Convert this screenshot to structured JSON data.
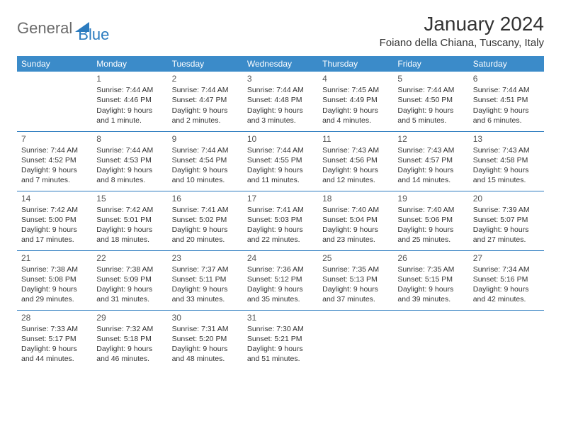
{
  "logo": {
    "general": "General",
    "blue": "Blue"
  },
  "title": "January 2024",
  "location": "Foiano della Chiana, Tuscany, Italy",
  "colors": {
    "header_bg": "#3b8bc9",
    "header_text": "#ffffff",
    "rule": "#2b7bbf",
    "logo_gray": "#6b6b6b",
    "logo_blue": "#2b7bbf",
    "body_text": "#333333"
  },
  "weekdays": [
    "Sunday",
    "Monday",
    "Tuesday",
    "Wednesday",
    "Thursday",
    "Friday",
    "Saturday"
  ],
  "weeks": [
    [
      null,
      {
        "n": "1",
        "sr": "Sunrise: 7:44 AM",
        "ss": "Sunset: 4:46 PM",
        "d1": "Daylight: 9 hours",
        "d2": "and 1 minute."
      },
      {
        "n": "2",
        "sr": "Sunrise: 7:44 AM",
        "ss": "Sunset: 4:47 PM",
        "d1": "Daylight: 9 hours",
        "d2": "and 2 minutes."
      },
      {
        "n": "3",
        "sr": "Sunrise: 7:44 AM",
        "ss": "Sunset: 4:48 PM",
        "d1": "Daylight: 9 hours",
        "d2": "and 3 minutes."
      },
      {
        "n": "4",
        "sr": "Sunrise: 7:45 AM",
        "ss": "Sunset: 4:49 PM",
        "d1": "Daylight: 9 hours",
        "d2": "and 4 minutes."
      },
      {
        "n": "5",
        "sr": "Sunrise: 7:44 AM",
        "ss": "Sunset: 4:50 PM",
        "d1": "Daylight: 9 hours",
        "d2": "and 5 minutes."
      },
      {
        "n": "6",
        "sr": "Sunrise: 7:44 AM",
        "ss": "Sunset: 4:51 PM",
        "d1": "Daylight: 9 hours",
        "d2": "and 6 minutes."
      }
    ],
    [
      {
        "n": "7",
        "sr": "Sunrise: 7:44 AM",
        "ss": "Sunset: 4:52 PM",
        "d1": "Daylight: 9 hours",
        "d2": "and 7 minutes."
      },
      {
        "n": "8",
        "sr": "Sunrise: 7:44 AM",
        "ss": "Sunset: 4:53 PM",
        "d1": "Daylight: 9 hours",
        "d2": "and 8 minutes."
      },
      {
        "n": "9",
        "sr": "Sunrise: 7:44 AM",
        "ss": "Sunset: 4:54 PM",
        "d1": "Daylight: 9 hours",
        "d2": "and 10 minutes."
      },
      {
        "n": "10",
        "sr": "Sunrise: 7:44 AM",
        "ss": "Sunset: 4:55 PM",
        "d1": "Daylight: 9 hours",
        "d2": "and 11 minutes."
      },
      {
        "n": "11",
        "sr": "Sunrise: 7:43 AM",
        "ss": "Sunset: 4:56 PM",
        "d1": "Daylight: 9 hours",
        "d2": "and 12 minutes."
      },
      {
        "n": "12",
        "sr": "Sunrise: 7:43 AM",
        "ss": "Sunset: 4:57 PM",
        "d1": "Daylight: 9 hours",
        "d2": "and 14 minutes."
      },
      {
        "n": "13",
        "sr": "Sunrise: 7:43 AM",
        "ss": "Sunset: 4:58 PM",
        "d1": "Daylight: 9 hours",
        "d2": "and 15 minutes."
      }
    ],
    [
      {
        "n": "14",
        "sr": "Sunrise: 7:42 AM",
        "ss": "Sunset: 5:00 PM",
        "d1": "Daylight: 9 hours",
        "d2": "and 17 minutes."
      },
      {
        "n": "15",
        "sr": "Sunrise: 7:42 AM",
        "ss": "Sunset: 5:01 PM",
        "d1": "Daylight: 9 hours",
        "d2": "and 18 minutes."
      },
      {
        "n": "16",
        "sr": "Sunrise: 7:41 AM",
        "ss": "Sunset: 5:02 PM",
        "d1": "Daylight: 9 hours",
        "d2": "and 20 minutes."
      },
      {
        "n": "17",
        "sr": "Sunrise: 7:41 AM",
        "ss": "Sunset: 5:03 PM",
        "d1": "Daylight: 9 hours",
        "d2": "and 22 minutes."
      },
      {
        "n": "18",
        "sr": "Sunrise: 7:40 AM",
        "ss": "Sunset: 5:04 PM",
        "d1": "Daylight: 9 hours",
        "d2": "and 23 minutes."
      },
      {
        "n": "19",
        "sr": "Sunrise: 7:40 AM",
        "ss": "Sunset: 5:06 PM",
        "d1": "Daylight: 9 hours",
        "d2": "and 25 minutes."
      },
      {
        "n": "20",
        "sr": "Sunrise: 7:39 AM",
        "ss": "Sunset: 5:07 PM",
        "d1": "Daylight: 9 hours",
        "d2": "and 27 minutes."
      }
    ],
    [
      {
        "n": "21",
        "sr": "Sunrise: 7:38 AM",
        "ss": "Sunset: 5:08 PM",
        "d1": "Daylight: 9 hours",
        "d2": "and 29 minutes."
      },
      {
        "n": "22",
        "sr": "Sunrise: 7:38 AM",
        "ss": "Sunset: 5:09 PM",
        "d1": "Daylight: 9 hours",
        "d2": "and 31 minutes."
      },
      {
        "n": "23",
        "sr": "Sunrise: 7:37 AM",
        "ss": "Sunset: 5:11 PM",
        "d1": "Daylight: 9 hours",
        "d2": "and 33 minutes."
      },
      {
        "n": "24",
        "sr": "Sunrise: 7:36 AM",
        "ss": "Sunset: 5:12 PM",
        "d1": "Daylight: 9 hours",
        "d2": "and 35 minutes."
      },
      {
        "n": "25",
        "sr": "Sunrise: 7:35 AM",
        "ss": "Sunset: 5:13 PM",
        "d1": "Daylight: 9 hours",
        "d2": "and 37 minutes."
      },
      {
        "n": "26",
        "sr": "Sunrise: 7:35 AM",
        "ss": "Sunset: 5:15 PM",
        "d1": "Daylight: 9 hours",
        "d2": "and 39 minutes."
      },
      {
        "n": "27",
        "sr": "Sunrise: 7:34 AM",
        "ss": "Sunset: 5:16 PM",
        "d1": "Daylight: 9 hours",
        "d2": "and 42 minutes."
      }
    ],
    [
      {
        "n": "28",
        "sr": "Sunrise: 7:33 AM",
        "ss": "Sunset: 5:17 PM",
        "d1": "Daylight: 9 hours",
        "d2": "and 44 minutes."
      },
      {
        "n": "29",
        "sr": "Sunrise: 7:32 AM",
        "ss": "Sunset: 5:18 PM",
        "d1": "Daylight: 9 hours",
        "d2": "and 46 minutes."
      },
      {
        "n": "30",
        "sr": "Sunrise: 7:31 AM",
        "ss": "Sunset: 5:20 PM",
        "d1": "Daylight: 9 hours",
        "d2": "and 48 minutes."
      },
      {
        "n": "31",
        "sr": "Sunrise: 7:30 AM",
        "ss": "Sunset: 5:21 PM",
        "d1": "Daylight: 9 hours",
        "d2": "and 51 minutes."
      },
      null,
      null,
      null
    ]
  ]
}
